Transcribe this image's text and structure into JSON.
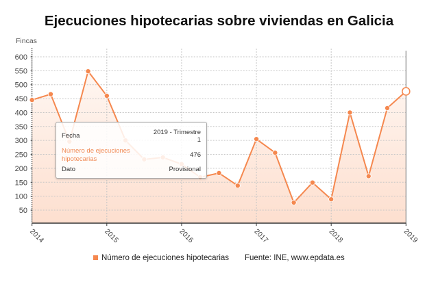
{
  "title": "Ejecuciones hipotecarias sobre viviendas en Galicia",
  "y_axis_unit": "Fincas",
  "tooltip": {
    "fecha_label": "Fecha",
    "fecha_value_line1": "2019 - Trimestre",
    "fecha_value_line2": "1",
    "series_label_line1": "Número de ejecuciones",
    "series_label_line2": "hipotecarias",
    "series_value": "476",
    "dato_label": "Dato",
    "dato_value": "Provisional"
  },
  "legend": {
    "series_label": "Número de ejecuciones hipotecarias",
    "source": "Fuente: INE, www.epdata.es"
  },
  "colors": {
    "series": "#f5884f",
    "tooltip_series_label": "#f08a55",
    "fill_top": "#fff8f4",
    "fill_bottom": "#fddfcf",
    "grid": "#c6c6c6",
    "axis": "#333333",
    "crosshair": "#8a8a8a",
    "tick_text": "#444444"
  },
  "chart_data": {
    "type": "line",
    "title": "Ejecuciones hipotecarias sobre viviendas en Galicia",
    "xlabel": "",
    "ylabel": "Fincas",
    "ylim": [
      0,
      600
    ],
    "yticks": [
      50,
      100,
      150,
      200,
      250,
      300,
      350,
      400,
      450,
      500,
      550,
      600
    ],
    "xticks": [
      {
        "label": "2014",
        "index": 0
      },
      {
        "label": "2015",
        "index": 4
      },
      {
        "label": "2016",
        "index": 8
      },
      {
        "label": "2017",
        "index": 12
      },
      {
        "label": "2018",
        "index": 16
      },
      {
        "label": "2019",
        "index": 20
      }
    ],
    "grid": true,
    "legend_position": "bottom",
    "categories": [
      "2014 - Trimestre 1",
      "2014 - Trimestre 2",
      "2014 - Trimestre 3",
      "2014 - Trimestre 4",
      "2015 - Trimestre 1",
      "2015 - Trimestre 2",
      "2015 - Trimestre 3",
      "2015 - Trimestre 4",
      "2016 - Trimestre 1",
      "2016 - Trimestre 2",
      "2016 - Trimestre 3",
      "2016 - Trimestre 4",
      "2017 - Trimestre 1",
      "2017 - Trimestre 2",
      "2017 - Trimestre 3",
      "2017 - Trimestre 4",
      "2018 - Trimestre 1",
      "2018 - Trimestre 2",
      "2018 - Trimestre 3",
      "2018 - Trimestre 4",
      "2019 - Trimestre 1"
    ],
    "series": [
      {
        "name": "Número de ejecuciones hipotecarias",
        "color": "#f5884f",
        "values": [
          445,
          466,
          296,
          548,
          460,
          300,
          232,
          239,
          215,
          168,
          183,
          138,
          305,
          256,
          77,
          149,
          89,
          400,
          172,
          416,
          476
        ]
      }
    ],
    "annotations": [
      {
        "category": "2019 - Trimestre 1",
        "value": 476,
        "dato": "Provisional",
        "highlighted": true
      }
    ]
  }
}
